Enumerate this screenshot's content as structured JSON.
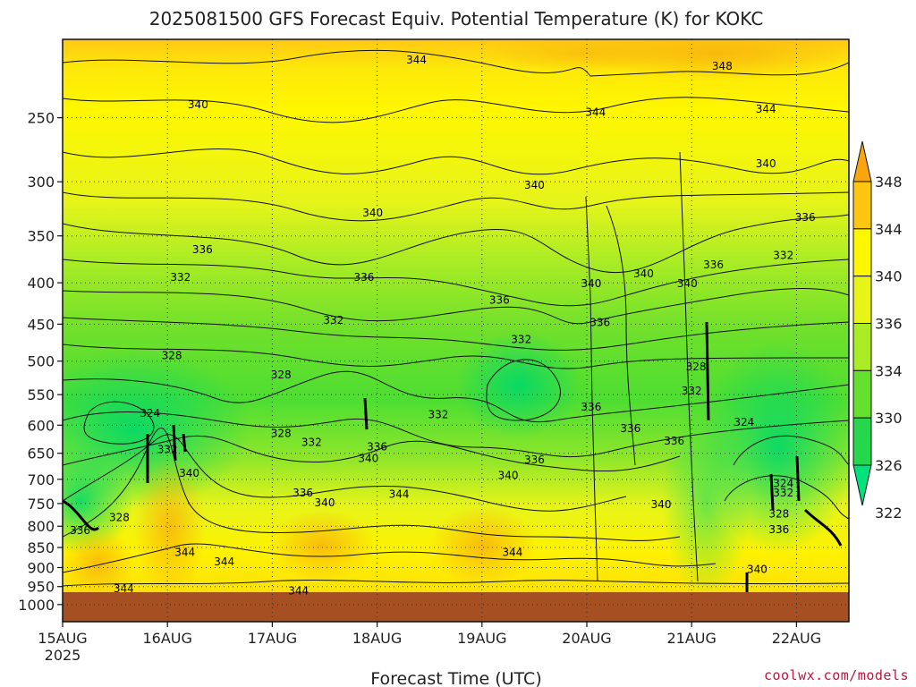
{
  "chart_data": {
    "type": "heatmap",
    "title": "2025081500 GFS Forecast Equiv. Potential Temperature (K) for KOKC",
    "xlabel": "Forecast Time (UTC)",
    "x_ticks": [
      "15AUG",
      "16AUG",
      "17AUG",
      "18AUG",
      "19AUG",
      "20AUG",
      "21AUG",
      "22AUG"
    ],
    "x_year": "2025",
    "x_range_hours": [
      0,
      180
    ],
    "y_ticks": [
      250,
      300,
      350,
      400,
      450,
      500,
      550,
      600,
      650,
      700,
      750,
      800,
      850,
      900,
      950,
      1000
    ],
    "y_range": [
      200,
      1050
    ],
    "y_scale": "log-pressure",
    "grid": true,
    "colorbar": {
      "levels": [
        322,
        326,
        330,
        334,
        336,
        340,
        344,
        348
      ],
      "colors": [
        "#00e27a",
        "#26d64c",
        "#66e02e",
        "#aaec25",
        "#e6f41a",
        "#fff700",
        "#fdc612",
        "#f9a60e"
      ],
      "placement": "right"
    },
    "contour_labels": [
      {
        "t": 81,
        "p": 212,
        "v": "344"
      },
      {
        "t": 151,
        "p": 216,
        "v": "348"
      },
      {
        "t": 31,
        "p": 241,
        "v": "340"
      },
      {
        "t": 122,
        "p": 246,
        "v": "344"
      },
      {
        "t": 161,
        "p": 244,
        "v": "344"
      },
      {
        "t": 161,
        "p": 285,
        "v": "340"
      },
      {
        "t": 108,
        "p": 303,
        "v": "340"
      },
      {
        "t": 71,
        "p": 328,
        "v": "340"
      },
      {
        "t": 170,
        "p": 332,
        "v": "336"
      },
      {
        "t": 32,
        "p": 364,
        "v": "336"
      },
      {
        "t": 165,
        "p": 370,
        "v": "332"
      },
      {
        "t": 149,
        "p": 380,
        "v": "336"
      },
      {
        "t": 27,
        "p": 394,
        "v": "332"
      },
      {
        "t": 69,
        "p": 394,
        "v": "336"
      },
      {
        "t": 133,
        "p": 390,
        "v": "340"
      },
      {
        "t": 121,
        "p": 401,
        "v": "340"
      },
      {
        "t": 143,
        "p": 401,
        "v": "340"
      },
      {
        "t": 100,
        "p": 420,
        "v": "336"
      },
      {
        "t": 62,
        "p": 445,
        "v": "332"
      },
      {
        "t": 123,
        "p": 448,
        "v": "336"
      },
      {
        "t": 105,
        "p": 470,
        "v": "332"
      },
      {
        "t": 25,
        "p": 492,
        "v": "328"
      },
      {
        "t": 50,
        "p": 520,
        "v": "328"
      },
      {
        "t": 145,
        "p": 508,
        "v": "328"
      },
      {
        "t": 144,
        "p": 544,
        "v": "332"
      },
      {
        "t": 86,
        "p": 582,
        "v": "332"
      },
      {
        "t": 121,
        "p": 570,
        "v": "336"
      },
      {
        "t": 20,
        "p": 580,
        "v": "324"
      },
      {
        "t": 156,
        "p": 595,
        "v": "324"
      },
      {
        "t": 130,
        "p": 606,
        "v": "336"
      },
      {
        "t": 50,
        "p": 614,
        "v": "328"
      },
      {
        "t": 72,
        "p": 638,
        "v": "336"
      },
      {
        "t": 57,
        "p": 630,
        "v": "332"
      },
      {
        "t": 140,
        "p": 628,
        "v": "336"
      },
      {
        "t": 70,
        "p": 660,
        "v": "340"
      },
      {
        "t": 108,
        "p": 662,
        "v": "336"
      },
      {
        "t": 24,
        "p": 643,
        "v": "332"
      },
      {
        "t": 29,
        "p": 688,
        "v": "340"
      },
      {
        "t": 102,
        "p": 692,
        "v": "340"
      },
      {
        "t": 165,
        "p": 708,
        "v": "324"
      },
      {
        "t": 165,
        "p": 728,
        "v": "332"
      },
      {
        "t": 55,
        "p": 728,
        "v": "336"
      },
      {
        "t": 77,
        "p": 730,
        "v": "344"
      },
      {
        "t": 60,
        "p": 748,
        "v": "340"
      },
      {
        "t": 137,
        "p": 752,
        "v": "340"
      },
      {
        "t": 164,
        "p": 772,
        "v": "328"
      },
      {
        "t": 13,
        "p": 780,
        "v": "328"
      },
      {
        "t": 4,
        "p": 810,
        "v": "336"
      },
      {
        "t": 164,
        "p": 808,
        "v": "336"
      },
      {
        "t": 28,
        "p": 862,
        "v": "344"
      },
      {
        "t": 37,
        "p": 885,
        "v": "344"
      },
      {
        "t": 103,
        "p": 862,
        "v": "344"
      },
      {
        "t": 159,
        "p": 905,
        "v": "340"
      },
      {
        "t": 14,
        "p": 955,
        "v": "344"
      },
      {
        "t": 54,
        "p": 962,
        "v": "344"
      }
    ]
  },
  "credit": "coolwx.com/models"
}
